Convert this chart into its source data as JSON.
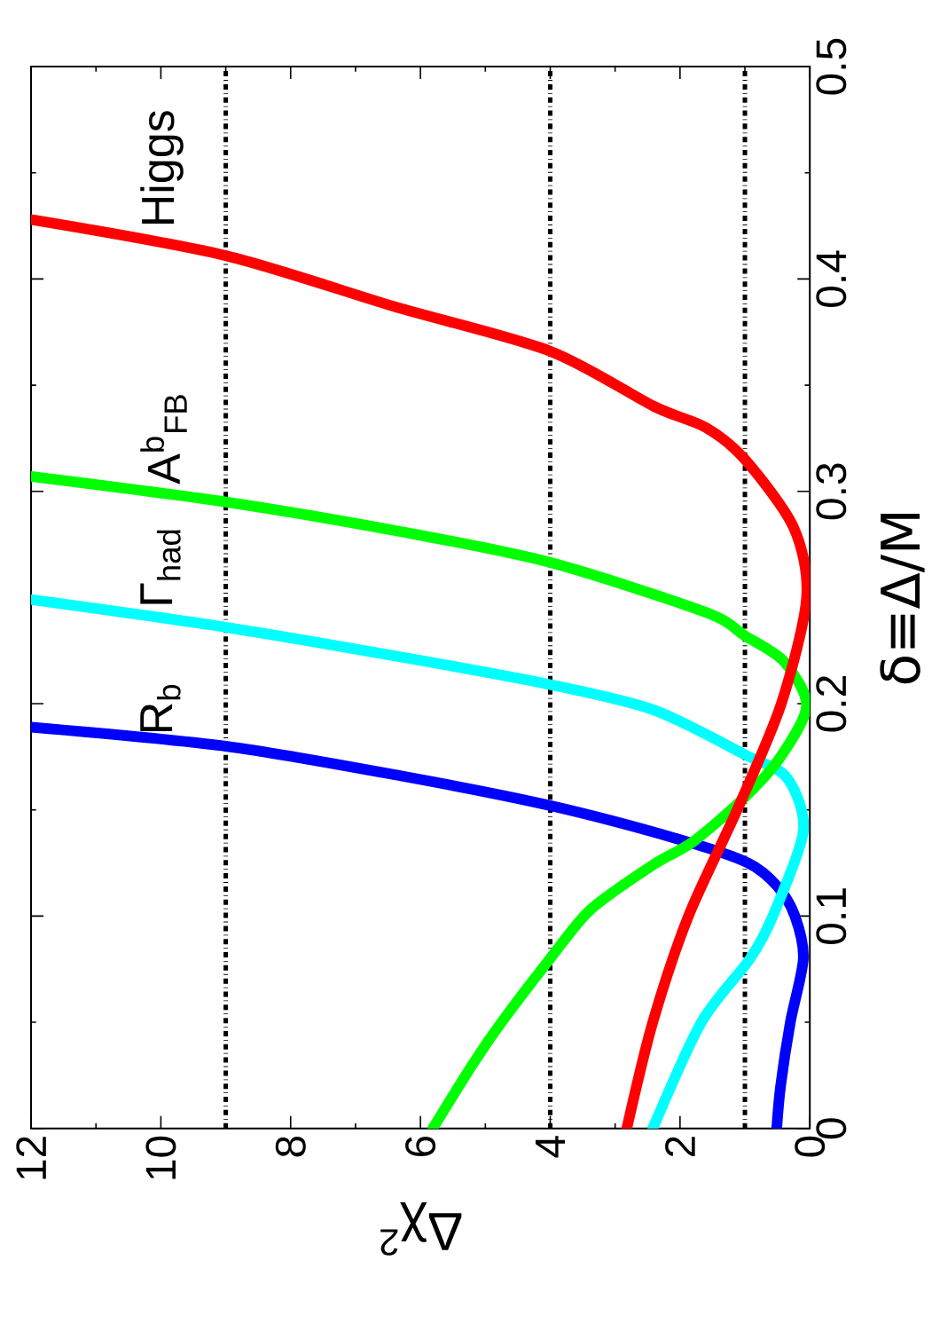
{
  "chart_data": {
    "type": "line",
    "xlabel": "Δχ$^{2}$",
    "ylabel": "δ≡Δ/M",
    "marker": "none",
    "xlim": [
      12,
      0
    ],
    "ylim": [
      0,
      0.5
    ],
    "xticks": [
      0,
      2,
      4,
      6,
      8,
      10,
      12
    ],
    "yticks": [
      0,
      0.1,
      0.2,
      0.3,
      0.4,
      0.5
    ],
    "ref_lines": [
      {
        "axis": "x",
        "value": 1,
        "color": "#000000",
        "line_style": "dashdot"
      },
      {
        "axis": "x",
        "value": 4,
        "color": "#000000",
        "line_style": "dashdot"
      },
      {
        "axis": "x",
        "value": 9,
        "color": "#000000",
        "line_style": "dashdot"
      }
    ],
    "series": [
      {
        "name": "R$_{b}$",
        "color": "#0000ff",
        "x": [
          0.51,
          0.45,
          0.3,
          0.1,
          0.23,
          0.5,
          0.95,
          2.0,
          4.0,
          6.3,
          9.0,
          12
        ],
        "values": [
          0,
          0.02,
          0.05,
          0.08,
          0.1,
          0.114,
          0.125,
          0.136,
          0.152,
          0.166,
          0.18,
          0.189
        ]
      },
      {
        "name": "Γ$_{had}$",
        "color": "#00ffff",
        "x": [
          2.42,
          1.67,
          0.92,
          0.57,
          0.1,
          0.35,
          1.0,
          2.4,
          4.0,
          6.3,
          9.0,
          12
        ],
        "values": [
          0,
          0.05,
          0.08,
          0.1,
          0.14,
          0.165,
          0.176,
          0.197,
          0.209,
          0.222,
          0.236,
          0.249
        ]
      },
      {
        "name": "A$^{b}$$_{FB}$",
        "color": "#00ff00",
        "x": [
          5.81,
          5.2,
          4.75,
          4.0,
          3.38,
          2.42,
          1.8,
          1.0,
          0.45,
          0.05,
          0.4,
          1.0,
          1.6,
          4.0,
          6.3,
          9.0,
          12
        ],
        "values": [
          0,
          0.03,
          0.05,
          0.08,
          0.103,
          0.124,
          0.135,
          0.156,
          0.175,
          0.199,
          0.22,
          0.232,
          0.243,
          0.2665,
          0.281,
          0.295,
          0.307
        ]
      },
      {
        "name": "Higgs",
        "color": "#ff0000",
        "x": [
          2.82,
          2.42,
          1.87,
          1.12,
          0.44,
          0.05,
          0.25,
          1.0,
          1.6,
          2.4,
          4.0,
          6.4,
          9.0,
          12
        ],
        "values": [
          0,
          0.05,
          0.1,
          0.15,
          0.2,
          0.25,
          0.283,
          0.315,
          0.33,
          0.34,
          0.366,
          0.387,
          0.411,
          0.428
        ]
      }
    ]
  }
}
